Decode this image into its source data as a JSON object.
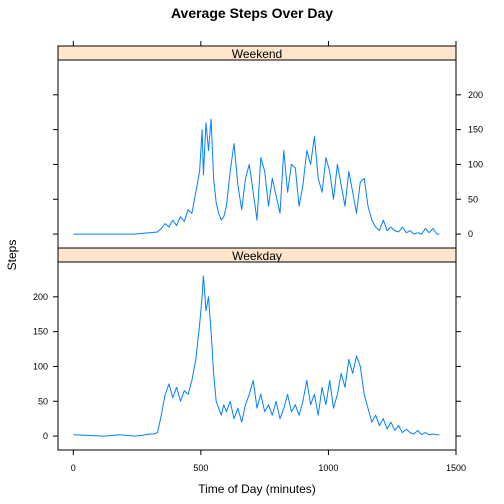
{
  "chart_data": {
    "type": "line",
    "title": "Average Steps Over Day",
    "xlabel": "Time of Day (minutes)",
    "ylabel": "Steps",
    "xlim": [
      -60,
      1500
    ],
    "ylim": [
      -20,
      250
    ],
    "xticks": [
      0,
      500,
      1000,
      1500
    ],
    "yticks": [
      0,
      50,
      100,
      150,
      200
    ],
    "grid": false,
    "panels": [
      {
        "name": "Weekend",
        "x": [
          0,
          60,
          120,
          180,
          240,
          270,
          300,
          330,
          345,
          360,
          375,
          390,
          405,
          420,
          435,
          450,
          465,
          480,
          495,
          505,
          510,
          520,
          530,
          540,
          550,
          560,
          570,
          580,
          590,
          600,
          615,
          630,
          645,
          660,
          675,
          690,
          705,
          720,
          735,
          750,
          765,
          780,
          795,
          810,
          825,
          840,
          855,
          870,
          885,
          900,
          915,
          930,
          945,
          960,
          975,
          990,
          1005,
          1020,
          1035,
          1050,
          1065,
          1080,
          1095,
          1110,
          1125,
          1140,
          1155,
          1170,
          1185,
          1200,
          1215,
          1230,
          1245,
          1260,
          1275,
          1290,
          1305,
          1320,
          1335,
          1350,
          1365,
          1380,
          1395,
          1410,
          1425,
          1435
        ],
        "values": [
          0,
          0,
          0,
          0,
          0,
          1,
          2,
          3,
          8,
          15,
          10,
          20,
          12,
          25,
          18,
          35,
          30,
          60,
          90,
          150,
          85,
          160,
          120,
          165,
          80,
          45,
          30,
          20,
          25,
          40,
          90,
          130,
          70,
          35,
          80,
          100,
          60,
          20,
          110,
          90,
          40,
          80,
          55,
          30,
          120,
          60,
          100,
          95,
          40,
          70,
          120,
          100,
          140,
          80,
          60,
          110,
          90,
          50,
          100,
          70,
          40,
          90,
          60,
          30,
          75,
          80,
          40,
          20,
          10,
          5,
          20,
          5,
          10,
          5,
          3,
          10,
          2,
          5,
          0,
          2,
          0,
          8,
          2,
          8,
          0,
          0
        ]
      },
      {
        "name": "Weekday",
        "x": [
          0,
          60,
          120,
          180,
          240,
          270,
          300,
          315,
          330,
          345,
          360,
          375,
          390,
          405,
          420,
          435,
          450,
          465,
          480,
          495,
          505,
          510,
          520,
          530,
          540,
          550,
          560,
          570,
          580,
          590,
          600,
          615,
          630,
          645,
          660,
          675,
          690,
          705,
          720,
          735,
          750,
          765,
          780,
          795,
          810,
          825,
          840,
          855,
          870,
          885,
          900,
          915,
          930,
          945,
          960,
          975,
          990,
          1005,
          1020,
          1035,
          1050,
          1065,
          1080,
          1095,
          1110,
          1125,
          1140,
          1155,
          1170,
          1185,
          1200,
          1215,
          1230,
          1245,
          1260,
          1275,
          1290,
          1305,
          1320,
          1335,
          1350,
          1365,
          1380,
          1395,
          1410,
          1425,
          1435
        ],
        "values": [
          2,
          1,
          0,
          2,
          0,
          1,
          3,
          3,
          5,
          30,
          60,
          75,
          55,
          70,
          50,
          65,
          60,
          80,
          110,
          160,
          200,
          230,
          180,
          200,
          150,
          90,
          50,
          40,
          30,
          45,
          35,
          50,
          25,
          40,
          20,
          45,
          60,
          80,
          40,
          60,
          35,
          45,
          30,
          50,
          25,
          40,
          60,
          35,
          45,
          30,
          50,
          80,
          45,
          60,
          30,
          70,
          45,
          80,
          40,
          60,
          90,
          70,
          110,
          90,
          115,
          100,
          60,
          40,
          20,
          30,
          15,
          25,
          10,
          20,
          8,
          15,
          5,
          10,
          5,
          3,
          8,
          2,
          5,
          2,
          3,
          2,
          2
        ]
      }
    ]
  }
}
